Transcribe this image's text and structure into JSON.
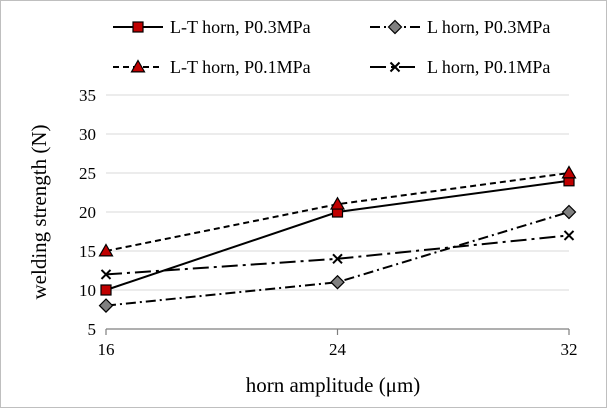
{
  "chart_data": {
    "type": "line",
    "title": "",
    "xlabel": "horn amplitude (μm)",
    "ylabel": "welding strength (N)",
    "x": [
      16,
      24,
      32
    ],
    "x_tick_labels": [
      "16",
      "24",
      "32"
    ],
    "ylim": [
      5,
      35
    ],
    "y_ticks": [
      5,
      10,
      15,
      20,
      25,
      30,
      35
    ],
    "y_tick_labels": [
      "5",
      "10",
      "15",
      "20",
      "25",
      "30",
      "35"
    ],
    "grid": "horizontal",
    "legend_position": "top",
    "series": [
      {
        "name": "L-T horn, P0.3MPa",
        "values": [
          10,
          20,
          24
        ],
        "line_style": "solid",
        "marker": "square",
        "color": "#000000",
        "marker_fill": "#c00000"
      },
      {
        "name": "L horn, P0.3MPa",
        "values": [
          8,
          11,
          20
        ],
        "line_style": "dash-dot",
        "marker": "diamond",
        "color": "#000000",
        "marker_fill": "#808080"
      },
      {
        "name": "L-T horn, P0.1MPa",
        "values": [
          15,
          21,
          25
        ],
        "line_style": "dashed",
        "marker": "triangle",
        "color": "#000000",
        "marker_fill": "#c00000"
      },
      {
        "name": "L horn, P0.1MPa",
        "values": [
          12,
          14,
          17
        ],
        "line_style": "long-dash-dot",
        "marker": "x",
        "color": "#000000",
        "marker_fill": "#000000"
      }
    ]
  }
}
